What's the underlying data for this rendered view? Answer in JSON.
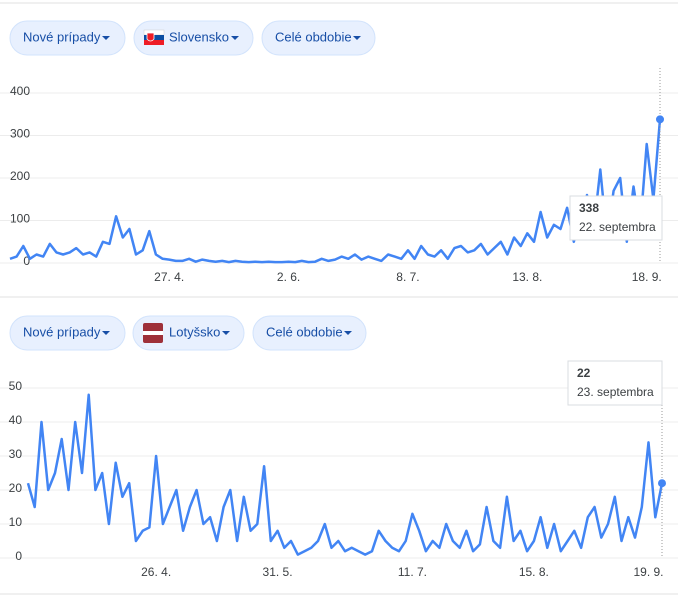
{
  "controls": [
    [
      "Nové prípady",
      "Slovensko",
      "Celé obdobie"
    ],
    [
      "Nové prípady",
      "Lotyšsko",
      "Celé obdobie"
    ]
  ],
  "chart_data": [
    {
      "type": "line",
      "color": "#4285f4",
      "grid": true,
      "ylim": [
        0,
        400
      ],
      "yticks": [
        0,
        100,
        200,
        300,
        400
      ],
      "tooltip_label": "22. septembra",
      "categories": [
        null,
        null,
        null,
        null,
        null,
        null,
        null,
        null,
        null,
        null,
        null,
        null,
        null,
        null,
        null,
        null,
        null,
        null,
        null,
        null,
        null,
        null,
        null,
        null,
        "27. 4.",
        null,
        null,
        null,
        null,
        null,
        null,
        null,
        null,
        null,
        null,
        null,
        null,
        null,
        null,
        null,
        null,
        null,
        "2. 6.",
        null,
        null,
        null,
        null,
        null,
        null,
        null,
        null,
        null,
        null,
        null,
        null,
        null,
        null,
        null,
        null,
        null,
        "8. 7.",
        null,
        null,
        null,
        null,
        null,
        null,
        null,
        null,
        null,
        null,
        null,
        null,
        null,
        null,
        null,
        null,
        null,
        "13. 8.",
        null,
        null,
        null,
        null,
        null,
        null,
        null,
        null,
        null,
        null,
        null,
        null,
        null,
        null,
        null,
        null,
        null,
        "18. 9.",
        null,
        null
      ],
      "values": [
        10,
        15,
        40,
        10,
        20,
        15,
        45,
        25,
        20,
        25,
        35,
        20,
        25,
        15,
        50,
        45,
        110,
        60,
        80,
        20,
        30,
        75,
        20,
        10,
        8,
        5,
        5,
        10,
        3,
        8,
        5,
        3,
        5,
        2,
        5,
        3,
        2,
        3,
        2,
        3,
        2,
        2,
        3,
        2,
        5,
        2,
        3,
        10,
        5,
        8,
        15,
        10,
        20,
        8,
        15,
        10,
        5,
        20,
        15,
        10,
        30,
        10,
        40,
        20,
        15,
        30,
        10,
        35,
        40,
        25,
        30,
        45,
        20,
        35,
        50,
        20,
        60,
        40,
        70,
        50,
        120,
        60,
        90,
        80,
        130,
        50,
        100,
        160,
        80,
        220,
        60,
        170,
        200,
        50,
        180,
        80,
        280,
        150,
        338
      ]
    },
    {
      "type": "line",
      "color": "#4285f4",
      "grid": true,
      "ylim": [
        0,
        50
      ],
      "yticks": [
        0,
        10,
        20,
        30,
        40,
        50
      ],
      "tooltip_label": "23. septembra",
      "categories": [
        null,
        null,
        null,
        null,
        null,
        null,
        null,
        null,
        null,
        null,
        null,
        null,
        null,
        null,
        null,
        null,
        null,
        null,
        null,
        "26. 4.",
        null,
        null,
        null,
        null,
        null,
        null,
        null,
        null,
        null,
        null,
        null,
        null,
        null,
        null,
        null,
        null,
        null,
        "31. 5.",
        null,
        null,
        null,
        null,
        null,
        null,
        null,
        null,
        null,
        null,
        null,
        null,
        null,
        null,
        null,
        null,
        null,
        null,
        null,
        "11. 7.",
        null,
        null,
        null,
        null,
        null,
        null,
        null,
        null,
        null,
        null,
        null,
        null,
        null,
        null,
        null,
        null,
        null,
        "15. 8.",
        null,
        null,
        null,
        null,
        null,
        null,
        null,
        null,
        null,
        null,
        null,
        null,
        null,
        null,
        null,
        null,
        "19. 9.",
        null,
        null
      ],
      "values": [
        22,
        15,
        40,
        20,
        25,
        35,
        20,
        40,
        25,
        48,
        20,
        25,
        10,
        28,
        18,
        22,
        5,
        8,
        9,
        30,
        10,
        15,
        20,
        8,
        15,
        20,
        10,
        12,
        5,
        15,
        20,
        5,
        18,
        8,
        10,
        27,
        5,
        8,
        3,
        5,
        1,
        2,
        3,
        5,
        10,
        3,
        5,
        2,
        3,
        2,
        1,
        2,
        8,
        5,
        3,
        2,
        5,
        13,
        8,
        2,
        5,
        3,
        10,
        5,
        3,
        8,
        2,
        4,
        15,
        5,
        3,
        18,
        5,
        8,
        2,
        5,
        12,
        3,
        10,
        2,
        5,
        8,
        3,
        12,
        15,
        6,
        10,
        18,
        5,
        12,
        6,
        15,
        34,
        12,
        22
      ]
    }
  ]
}
